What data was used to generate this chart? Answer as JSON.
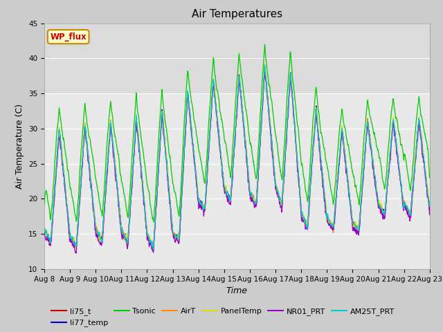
{
  "title": "Air Temperatures",
  "xlabel": "Time",
  "ylabel": "Air Temperature (C)",
  "ylim": [
    10,
    45
  ],
  "xlim": [
    0,
    15
  ],
  "x_tick_labels": [
    "Aug 8",
    "Aug 9",
    "Aug 10",
    "Aug 11",
    "Aug 12",
    "Aug 13",
    "Aug 14",
    "Aug 15",
    "Aug 16",
    "Aug 17",
    "Aug 18",
    "Aug 19",
    "Aug 20",
    "Aug 21",
    "Aug 22",
    "Aug 23"
  ],
  "line_colors": {
    "li75_t": "#cc0000",
    "li77_temp": "#0000cc",
    "Tsonic": "#00cc00",
    "AirT": "#ff8800",
    "PanelTemp": "#dddd00",
    "NR01_PRT": "#9900cc",
    "AM25T_PRT": "#00cccc"
  },
  "annotation_text": "WP_flux",
  "annotation_color": "#cc0000",
  "annotation_bg": "#ffffcc",
  "annotation_border": "#cc8800",
  "title_fontsize": 11,
  "axis_fontsize": 9,
  "tick_fontsize": 7.5
}
